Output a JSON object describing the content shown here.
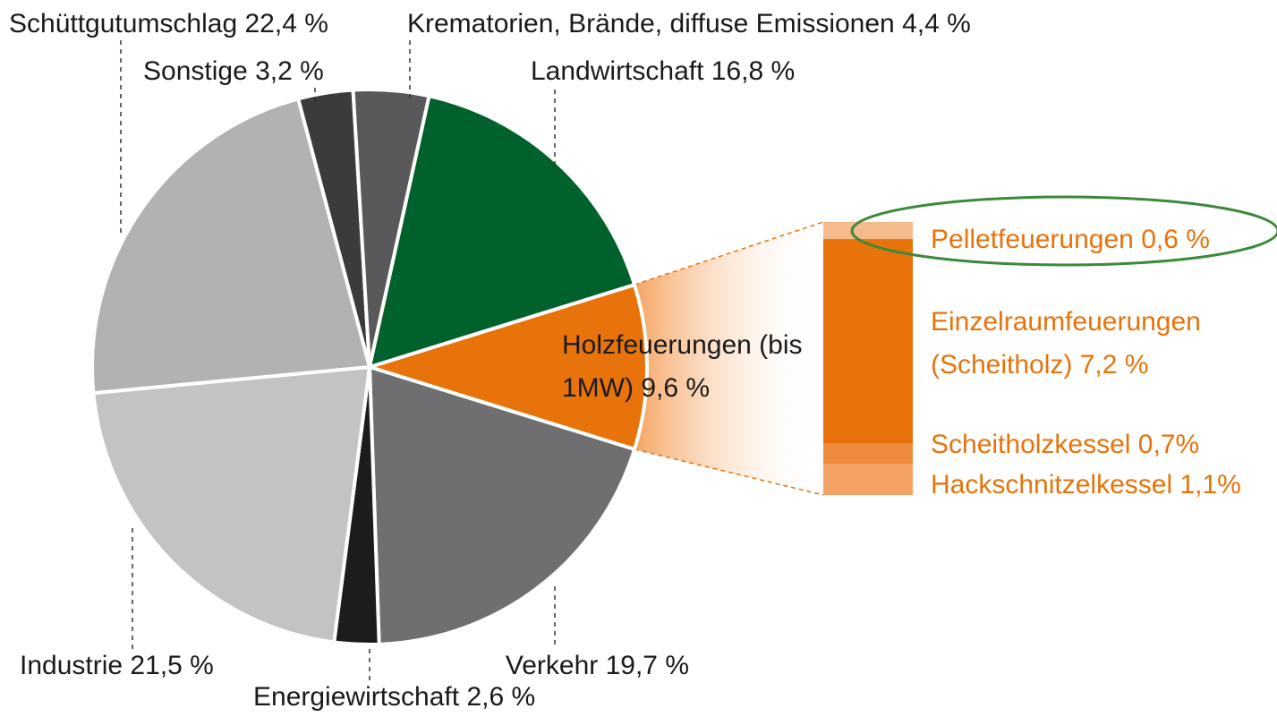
{
  "chart_data": {
    "type": "pie",
    "categories": [
      "Holzfeuerungen (bis 1MW)",
      "Verkehr",
      "Energiewirtschaft",
      "Industrie",
      "Schüttgutumschlag",
      "Sonstige",
      "Krematorien, Brände, diffuse Emissionen",
      "Landwirtschaft"
    ],
    "values": [
      9.6,
      19.7,
      2.6,
      21.5,
      22.4,
      3.2,
      4.4,
      16.8
    ],
    "value_labels": [
      "9,6 %",
      "19,7 %",
      "2,6 %",
      "21,5 %",
      "22,4 %",
      "3,2 %",
      "4,4 %",
      "16,8 %"
    ],
    "colors": [
      "#e8730a",
      "#6f6f71",
      "#1c1c1c",
      "#c3c3c3",
      "#b2b2b2",
      "#3b3b3d",
      "#59595b",
      "#00612c"
    ],
    "breakdown": {
      "categories": [
        "Pelletfeuerungen",
        "Einzelraumfeuerungen (Scheitholz)",
        "Scheitholzkessel",
        "Hackschnitzelkessel"
      ],
      "values": [
        0.6,
        7.2,
        0.7,
        1.1
      ],
      "value_labels": [
        "0,6 %",
        "7,2 %",
        "0,7%",
        "1,1%"
      ],
      "colors": [
        "#f5bb8d",
        "#e8730a",
        "#f08a3c",
        "#f4a365"
      ]
    }
  }
}
